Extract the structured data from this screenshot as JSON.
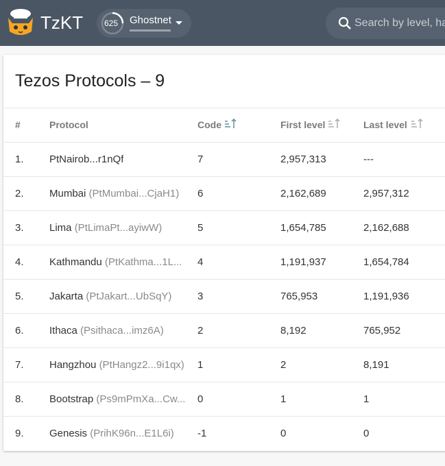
{
  "header": {
    "brand": "TzKT",
    "network_level": "625",
    "network": "Ghostnet",
    "search_placeholder": "Search by level, ha"
  },
  "page": {
    "title": "Tezos Protocols – 9"
  },
  "table": {
    "columns": [
      "#",
      "Protocol",
      "Code",
      "First level",
      "Last level"
    ],
    "rows": [
      {
        "index": "1.",
        "name": "PtNairob...r1nQf",
        "code": 7,
        "first_level": "2,957,313",
        "last_level": "---"
      },
      {
        "index": "2.",
        "name": "Mumbai",
        "hash": "(PtMumbai...CjaH1)",
        "code": 6,
        "first_level": "2,162,689",
        "last_level": "2,957,312"
      },
      {
        "index": "3.",
        "name": "Lima",
        "hash": "(PtLimaPt...ayiwW)",
        "code": 5,
        "first_level": "1,654,785",
        "last_level": "2,162,688"
      },
      {
        "index": "4.",
        "name": "Kathmandu",
        "hash": "(PtKathma...1L...",
        "code": 4,
        "first_level": "1,191,937",
        "last_level": "1,654,784"
      },
      {
        "index": "5.",
        "name": "Jakarta",
        "hash": "(PtJakart...UbSqY)",
        "code": 3,
        "first_level": "765,953",
        "last_level": "1,191,936"
      },
      {
        "index": "6.",
        "name": "Ithaca",
        "hash": "(Psithaca...imz6A)",
        "code": 2,
        "first_level": "8,192",
        "last_level": "765,952"
      },
      {
        "index": "7.",
        "name": "Hangzhou",
        "hash": "(PtHangz2...9i1qx)",
        "code": 1,
        "first_level": "2",
        "last_level": "8,191"
      },
      {
        "index": "8.",
        "name": "Bootstrap",
        "hash": "(Ps9mPmXa...Cw...",
        "code": 0,
        "first_level": "1",
        "last_level": "1"
      },
      {
        "index": "9.",
        "name": "Genesis",
        "hash": "(PrihK96n...E1L6i)",
        "code": -1,
        "first_level": "0",
        "last_level": "0"
      }
    ]
  }
}
